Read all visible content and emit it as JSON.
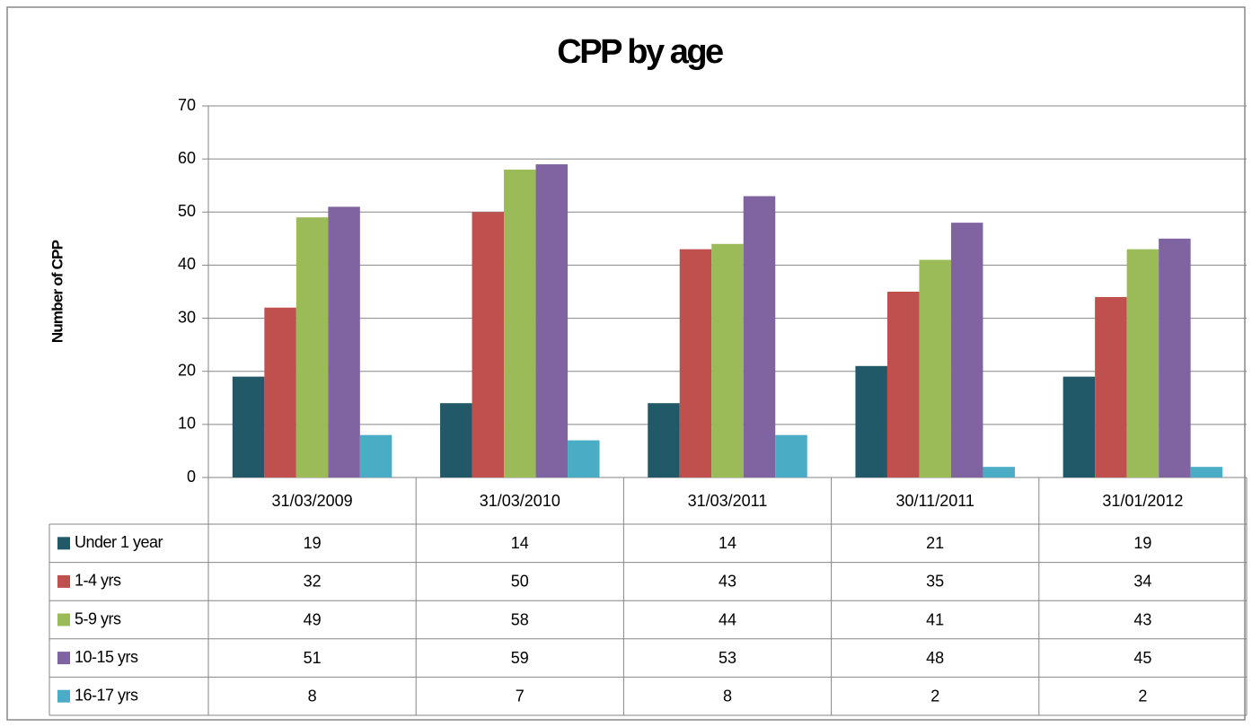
{
  "chart_data": {
    "type": "bar",
    "title": "CPP by age",
    "y_label": "Number of CPP",
    "categories": [
      "31/03/2009",
      "31/03/2010",
      "31/03/2011",
      "30/11/2011",
      "31/01/2012"
    ],
    "series": [
      {
        "name": "Under 1 year",
        "color": "#215968",
        "values": [
          19,
          14,
          14,
          21,
          19
        ]
      },
      {
        "name": "1-4 yrs",
        "color": "#c0504d",
        "values": [
          32,
          50,
          43,
          35,
          34
        ]
      },
      {
        "name": "5-9 yrs",
        "color": "#9bbb59",
        "values": [
          49,
          58,
          44,
          41,
          43
        ]
      },
      {
        "name": "10-15 yrs",
        "color": "#8064a2",
        "values": [
          51,
          59,
          53,
          48,
          45
        ]
      },
      {
        "name": "16-17 yrs",
        "color": "#4bacc6",
        "values": [
          8,
          7,
          8,
          2,
          2
        ]
      }
    ],
    "ylim": [
      0,
      70
    ],
    "yticks": [
      0,
      10,
      20,
      30,
      40,
      50,
      60,
      70
    ],
    "grid": true,
    "legend": "data-table"
  }
}
